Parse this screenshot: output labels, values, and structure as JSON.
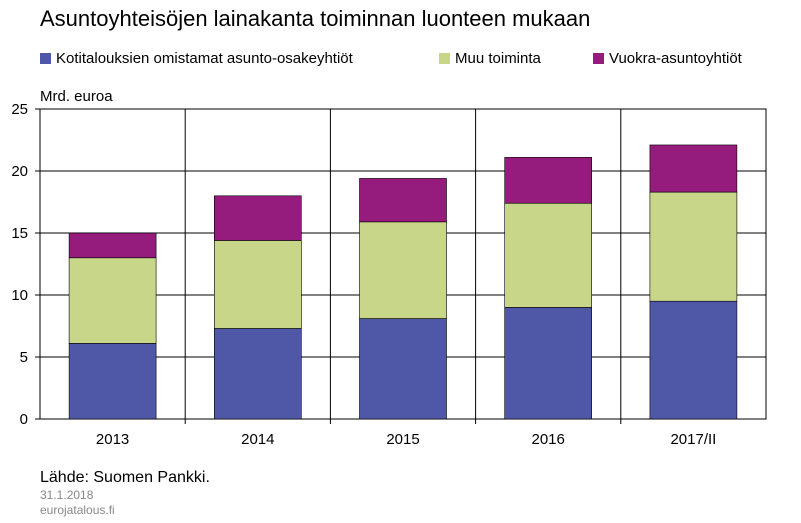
{
  "chart_data": {
    "type": "bar",
    "stacked": true,
    "title": "Asuntoyhteisöjen lainakanta toiminnan luonteen mukaan",
    "ylabel": "Mrd. euroa",
    "xlabel": "",
    "categories": [
      "2013",
      "2014",
      "2015",
      "2016",
      "2017/II"
    ],
    "ylim": [
      0,
      25
    ],
    "yticks": [
      "0",
      "5",
      "10",
      "15",
      "20",
      "25"
    ],
    "grid": true,
    "legend_position": "top",
    "series": [
      {
        "name": "Kotitalouksien omistamat asunto-osakeyhtiöt",
        "color": "#4f58a6",
        "values": [
          6.1,
          7.3,
          8.1,
          9.0,
          9.5
        ]
      },
      {
        "name": "Muu toiminta",
        "color": "#c8d68a",
        "values": [
          6.9,
          7.1,
          7.8,
          8.4,
          8.8
        ]
      },
      {
        "name": "Vuokra-asuntoyhtiöt",
        "color": "#951b7c",
        "values": [
          2.0,
          3.6,
          3.5,
          3.7,
          3.8
        ]
      }
    ]
  },
  "footer": {
    "source": "Lähde: Suomen Pankki.",
    "date": "31.1.2018",
    "site": "eurojatalous.fi"
  }
}
